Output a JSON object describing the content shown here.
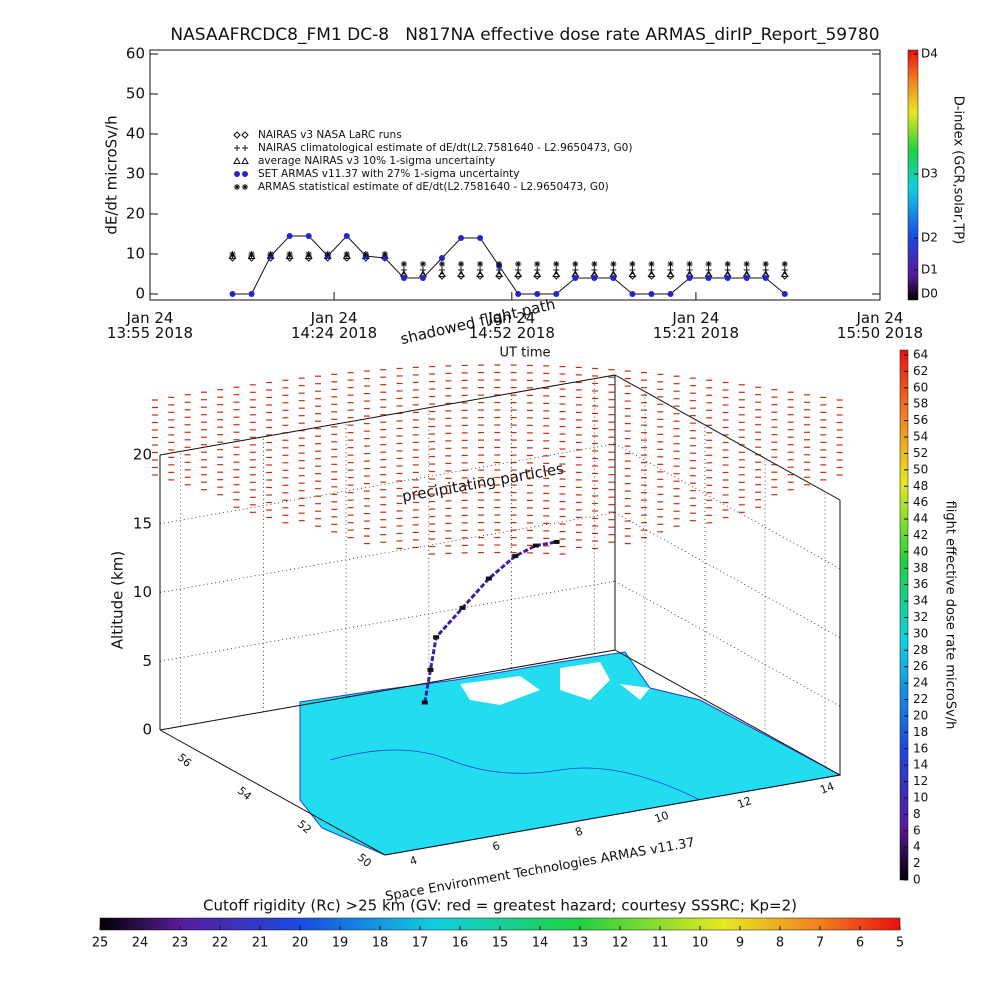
{
  "title": "NASAAFRCDC8_FM1 DC-8   N817NA effective dose rate ARMAS_dirIP_Report_59780",
  "chart_data": [
    {
      "type": "line",
      "ylabel": "dE/dt microSv/h",
      "xlabel": "UT time",
      "ylim": [
        -1.5,
        61
      ],
      "yticks": [
        0,
        10,
        20,
        30,
        40,
        50,
        60
      ],
      "xlim": [
        "13:55",
        "15:50"
      ],
      "xticks": [
        {
          "value": "13:55",
          "label": "Jan 24\n13:55 2018"
        },
        {
          "value": "14:24",
          "label": "Jan 24\n14:24 2018"
        },
        {
          "value": "14:52",
          "label": "Jan 24\n14:52 2018"
        },
        {
          "value": "15:21",
          "label": "Jan 24\n15:21 2018"
        },
        {
          "value": "15:50",
          "label": "Jan 24\n15:50 2018"
        }
      ],
      "legend": "upper-left",
      "x": [
        "14:08",
        "14:11",
        "14:14",
        "14:17",
        "14:20",
        "14:23",
        "14:26",
        "14:29",
        "14:32",
        "14:35",
        "14:38",
        "14:41",
        "14:44",
        "14:47",
        "14:50",
        "14:53",
        "14:56",
        "14:59",
        "15:02",
        "15:05",
        "15:08",
        "15:11",
        "15:14",
        "15:17",
        "15:20",
        "15:23",
        "15:26",
        "15:29",
        "15:32",
        "15:35"
      ],
      "series": [
        {
          "name": "NAIRAS v3 NASA LaRC runs",
          "marker": "diamond",
          "color": "#111111",
          "values": [
            9,
            9,
            9,
            9,
            9,
            9,
            9,
            9,
            9,
            4.5,
            4.5,
            4.5,
            4.5,
            4.5,
            4.5,
            4.5,
            4.5,
            4.5,
            4.5,
            4.5,
            4.5,
            4.5,
            4.5,
            4.5,
            4.5,
            4.5,
            4.5,
            4.5,
            4.5,
            4.5
          ]
        },
        {
          "name": "NAIRAS climatological estimate of dE/dt(L2.7581640 - L2.9650473, G0)",
          "marker": "plus",
          "color": "#111111",
          "values": [
            9.5,
            9.5,
            9.5,
            9.5,
            9.5,
            9.5,
            9.5,
            9.5,
            9.5,
            6,
            6,
            6,
            6,
            6,
            6,
            6,
            6,
            6,
            6,
            6,
            6,
            6,
            6,
            6,
            6,
            6,
            6,
            6,
            6,
            6
          ]
        },
        {
          "name": "average NAIRAS v3 10% 1-sigma uncertainty",
          "marker": "triangle",
          "color": "#111111",
          "values": [
            9.5,
            9.5,
            9.5,
            9.5,
            9.5,
            9.5,
            9.5,
            9.5,
            9.5,
            5,
            5,
            5,
            5,
            5,
            5,
            5,
            5,
            5,
            5,
            5,
            5,
            5,
            5,
            5,
            5,
            5,
            5,
            5,
            5,
            5
          ]
        },
        {
          "name": "SET ARMAS v11.37 with 27% 1-sigma uncertainty",
          "marker": "circle",
          "color": "#2424c8",
          "line": true,
          "values": [
            0,
            0,
            9.5,
            14.5,
            14.5,
            9.5,
            14.5,
            9.5,
            9,
            4,
            4,
            9,
            14,
            14,
            7,
            0,
            0,
            0,
            4,
            4,
            4,
            0,
            0,
            0,
            4,
            4,
            4,
            4,
            4,
            0
          ]
        },
        {
          "name": "ARMAS statistical estimate of dE/dt(L2.7581640 - L2.9650473, G0)",
          "marker": "star",
          "color": "#111111",
          "values": [
            10,
            10,
            10,
            10,
            10,
            10,
            10,
            10,
            10,
            7.5,
            7.5,
            7.5,
            7.5,
            7.5,
            7.5,
            7.5,
            7.5,
            7.5,
            7.5,
            7.5,
            7.5,
            7.5,
            7.5,
            7.5,
            7.5,
            7.5,
            7.5,
            7.5,
            7.5,
            7.5
          ]
        }
      ],
      "colorbar": {
        "label": "D-index (GCR,solar,TP)",
        "ticks": [
          {
            "value": 0,
            "label": "D0"
          },
          {
            "value": 6,
            "label": "D1"
          },
          {
            "value": 14,
            "label": "D2"
          },
          {
            "value": 30,
            "label": "D3"
          },
          {
            "value": 60,
            "label": "D4"
          }
        ]
      }
    },
    {
      "type": "scatter3d",
      "zlabel": "Altitude (km)",
      "annotations": [
        "shadowed flight path",
        "precipitating particles",
        "Space Environment Technologies ARMAS v11.37"
      ],
      "xlim": [
        3.5,
        14.5
      ],
      "xticks": [
        4,
        6,
        8,
        10,
        12,
        14
      ],
      "ylim": [
        49.5,
        57
      ],
      "yticks": [
        50,
        52,
        54,
        56
      ],
      "zlim": [
        0,
        20
      ],
      "zticks": [
        0,
        5,
        10,
        15,
        20
      ],
      "track": {
        "lon": [
          7,
          7.5,
          8,
          9,
          10,
          11,
          11.5,
          12
        ],
        "lat": [
          53,
          53.5,
          54,
          54.5,
          55,
          55.5,
          55.5,
          55.5
        ],
        "alt": [
          5,
          6.5,
          8,
          9,
          10,
          10.5,
          11,
          11
        ]
      },
      "colorbar": {
        "label": "flight effective dose rate microSv/h",
        "lim": [
          0,
          64
        ],
        "ticks": [
          0,
          2,
          4,
          6,
          8,
          10,
          12,
          14,
          16,
          18,
          20,
          22,
          24,
          26,
          28,
          30,
          32,
          34,
          36,
          38,
          40,
          42,
          44,
          46,
          48,
          50,
          52,
          54,
          56,
          58,
          60,
          62,
          64
        ]
      },
      "rigidity_bar": {
        "label": "Cutoff rigidity (Rc) >25 km (GV: red = greatest hazard; courtesy SSSRC; Kp=2)",
        "lim": [
          25,
          5
        ],
        "ticks": [
          25,
          24,
          23,
          22,
          21,
          20,
          19,
          18,
          17,
          16,
          15,
          14,
          13,
          12,
          11,
          10,
          9,
          8,
          7,
          6,
          5
        ]
      }
    }
  ]
}
